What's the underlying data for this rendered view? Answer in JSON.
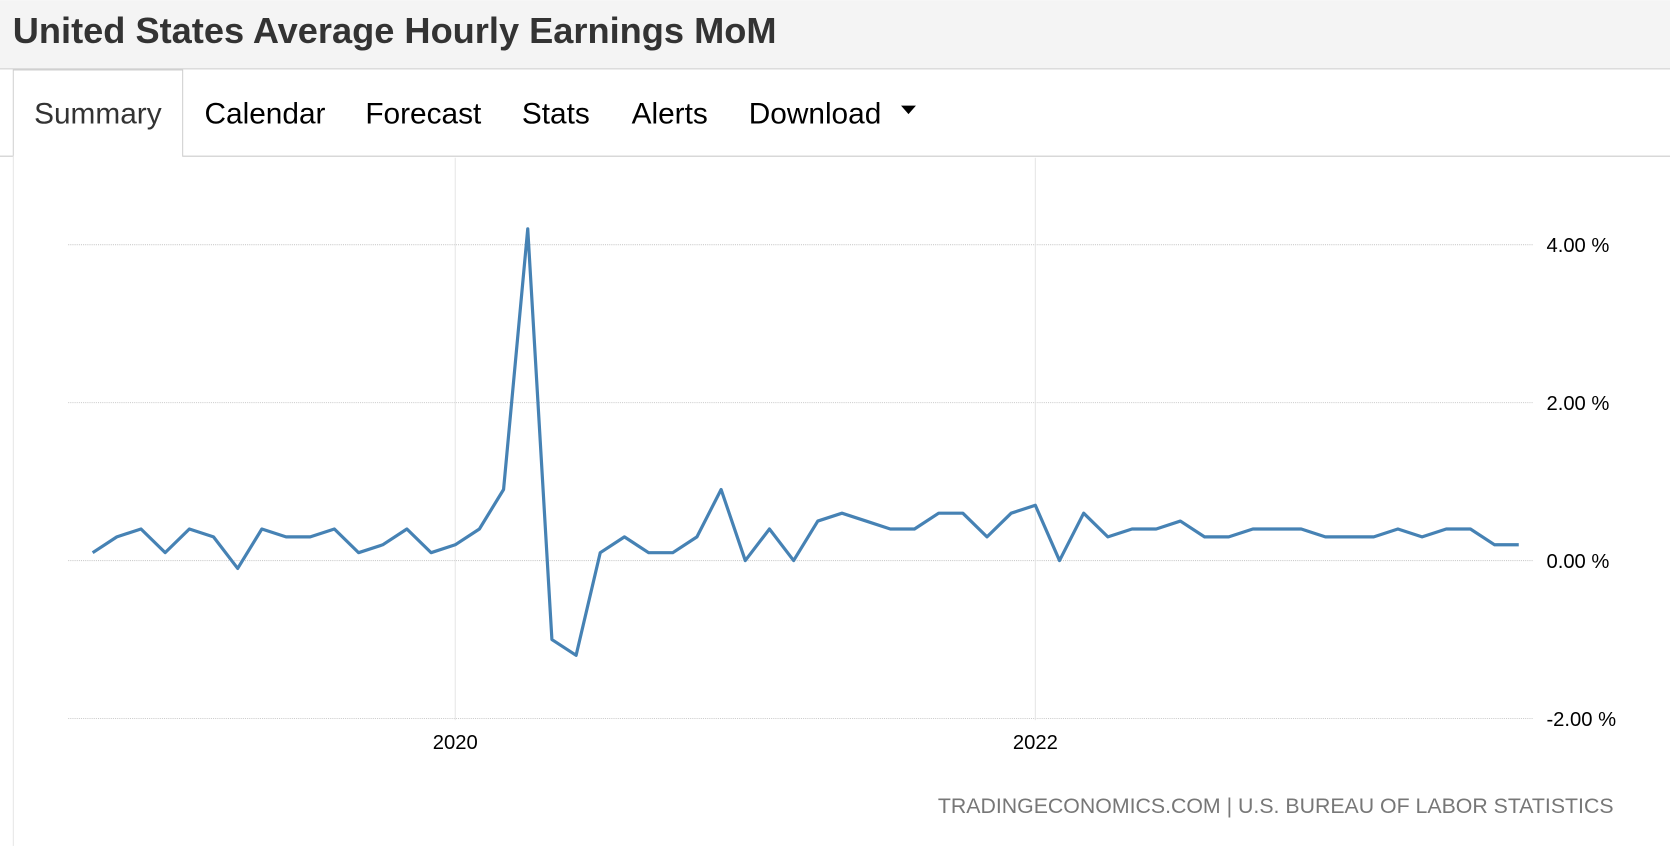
{
  "header": {
    "title": "United States Average Hourly Earnings MoM"
  },
  "tabs": [
    "Summary",
    "Calendar",
    "Forecast",
    "Stats",
    "Alerts",
    "Download"
  ],
  "chart_data": {
    "type": "line",
    "categories": [
      null,
      null,
      null,
      null,
      null,
      null,
      null,
      null,
      null,
      null,
      null,
      null,
      null,
      null,
      null,
      "2020",
      null,
      null,
      null,
      null,
      null,
      null,
      null,
      null,
      null,
      null,
      null,
      null,
      null,
      null,
      null,
      null,
      null,
      null,
      null,
      null,
      null,
      null,
      null,
      "2022",
      null,
      null,
      null,
      null,
      null,
      null,
      null,
      null,
      null,
      null,
      null,
      null,
      null,
      null,
      null,
      null,
      null,
      null,
      null,
      null
    ],
    "values": [
      0.1,
      0.3,
      0.4,
      0.1,
      0.4,
      0.3,
      -0.1,
      0.4,
      0.3,
      0.3,
      0.4,
      0.1,
      0.2,
      0.4,
      0.1,
      0.2,
      0.4,
      0.9,
      4.2,
      -1.0,
      -1.2,
      0.1,
      0.3,
      0.1,
      0.1,
      0.3,
      0.9,
      0.0,
      0.4,
      0.0,
      0.5,
      0.6,
      0.5,
      0.4,
      0.4,
      0.6,
      0.6,
      0.3,
      0.6,
      0.7,
      0.0,
      0.6,
      0.3,
      0.4,
      0.4,
      0.5,
      0.3,
      0.3,
      0.4,
      0.4,
      0.4,
      0.3,
      0.3,
      0.3,
      0.4,
      0.3,
      0.4,
      0.4,
      0.2,
      0.2
    ],
    "color": "#4682b4",
    "ylim": [
      -2.2,
      5.1
    ],
    "yticks": [
      {
        "value": 4,
        "label": "4.00 %"
      },
      {
        "value": 2,
        "label": "2.00 %"
      },
      {
        "value": 0,
        "label": "0.00 %"
      },
      {
        "value": -2,
        "label": "-2.00 %"
      }
    ],
    "grid": true,
    "source": "TRADINGECONOMICS.COM | U.S. BUREAU OF LABOR STATISTICS"
  }
}
